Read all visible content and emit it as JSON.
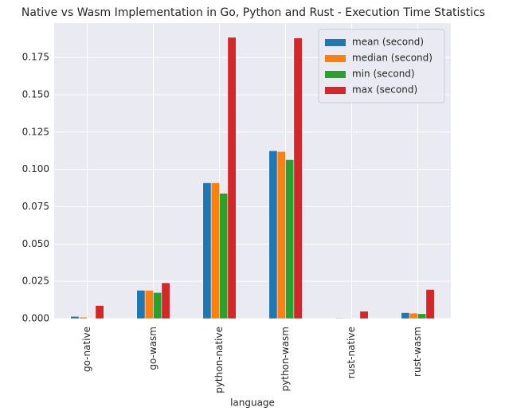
{
  "chart_data": {
    "type": "bar",
    "title": "Native vs Wasm Implementation in Go, Python and Rust - Execution Time Statistics",
    "x_label": "language",
    "categories": [
      "go-native",
      "go-wasm",
      "python-native",
      "python-wasm",
      "rust-native",
      "rust-wasm"
    ],
    "series": [
      {
        "name": "mean (second)",
        "color": "#1f77b4",
        "values": [
          0.0015,
          0.019,
          0.091,
          0.1125,
          0.0004,
          0.004
        ]
      },
      {
        "name": "median (second)",
        "color": "#ff7f0e",
        "values": [
          0.001,
          0.019,
          0.091,
          0.112,
          0.0004,
          0.0037
        ]
      },
      {
        "name": "min (second)",
        "color": "#2ca02c",
        "values": [
          0.0002,
          0.0175,
          0.084,
          0.1065,
          0.0002,
          0.0033
        ]
      },
      {
        "name": "max (second)",
        "color": "#d62728",
        "values": [
          0.0088,
          0.024,
          0.1885,
          0.188,
          0.005,
          0.0195
        ]
      }
    ],
    "ylim": [
      0,
      0.198
    ],
    "yticks": [
      {
        "value": 0,
        "label": "0.000"
      },
      {
        "value": 0.025,
        "label": "0.025"
      },
      {
        "value": 0.05,
        "label": "0.050"
      },
      {
        "value": 0.075,
        "label": "0.075"
      },
      {
        "value": 0.1,
        "label": "0.100"
      },
      {
        "value": 0.125,
        "label": "0.125"
      },
      {
        "value": 0.15,
        "label": "0.150"
      },
      {
        "value": 0.175,
        "label": "0.175"
      }
    ],
    "grid": true,
    "legend": "upper right"
  }
}
